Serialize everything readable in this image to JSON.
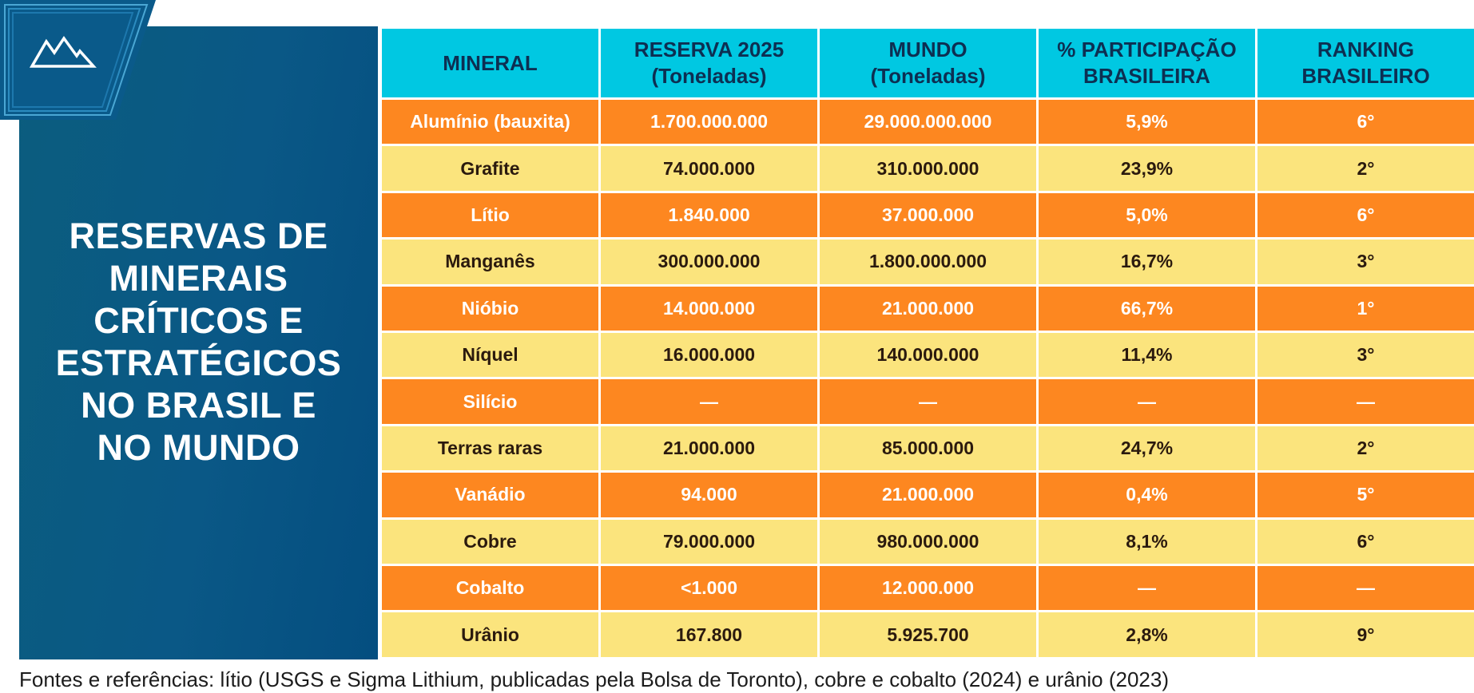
{
  "title": "RESERVAS DE\nMINERAIS\nCRÍTICOS E\nESTRATÉGICOS\nNO BRASIL E\nNO MUNDO",
  "logo_icon": "mountains-icon",
  "colors": {
    "panel_blue": "#0a5886",
    "header_cyan": "#00c8e2",
    "row_orange": "#fd8720",
    "row_yellow": "#fbe47d"
  },
  "table": {
    "headers": [
      "MINERAL",
      "RESERVA 2025\n(Toneladas)",
      "MUNDO\n(Toneladas)",
      "% PARTICIPAÇÃO\nBRASILEIRA",
      "RANKING\nBRASILEIRO"
    ],
    "rows": [
      [
        "Alumínio (bauxita)",
        "1.700.000.000",
        "29.000.000.000",
        "5,9%",
        "6°"
      ],
      [
        "Grafite",
        "74.000.000",
        "310.000.000",
        "23,9%",
        "2°"
      ],
      [
        "Lítio",
        "1.840.000",
        "37.000.000",
        "5,0%",
        "6°"
      ],
      [
        "Manganês",
        "300.000.000",
        "1.800.000.000",
        "16,7%",
        "3°"
      ],
      [
        "Nióbio",
        "14.000.000",
        "21.000.000",
        "66,7%",
        "1°"
      ],
      [
        "Níquel",
        "16.000.000",
        "140.000.000",
        "11,4%",
        "3°"
      ],
      [
        "Silício",
        "—",
        "—",
        "—",
        "—"
      ],
      [
        "Terras raras",
        "21.000.000",
        "85.000.000",
        "24,7%",
        "2°"
      ],
      [
        "Vanádio",
        "94.000",
        "21.000.000",
        "0,4%",
        "5°"
      ],
      [
        "Cobre",
        "79.000.000",
        "980.000.000",
        "8,1%",
        "6°"
      ],
      [
        "Cobalto",
        "<1.000",
        "12.000.000",
        "—",
        "—"
      ],
      [
        "Urânio",
        "167.800",
        "5.925.700",
        "2,8%",
        "9°"
      ]
    ]
  },
  "footer": "Fontes e referências: lítio (USGS e Sigma Lithium, publicadas pela Bolsa de Toronto), cobre e cobalto (2024) e urânio (2023)"
}
